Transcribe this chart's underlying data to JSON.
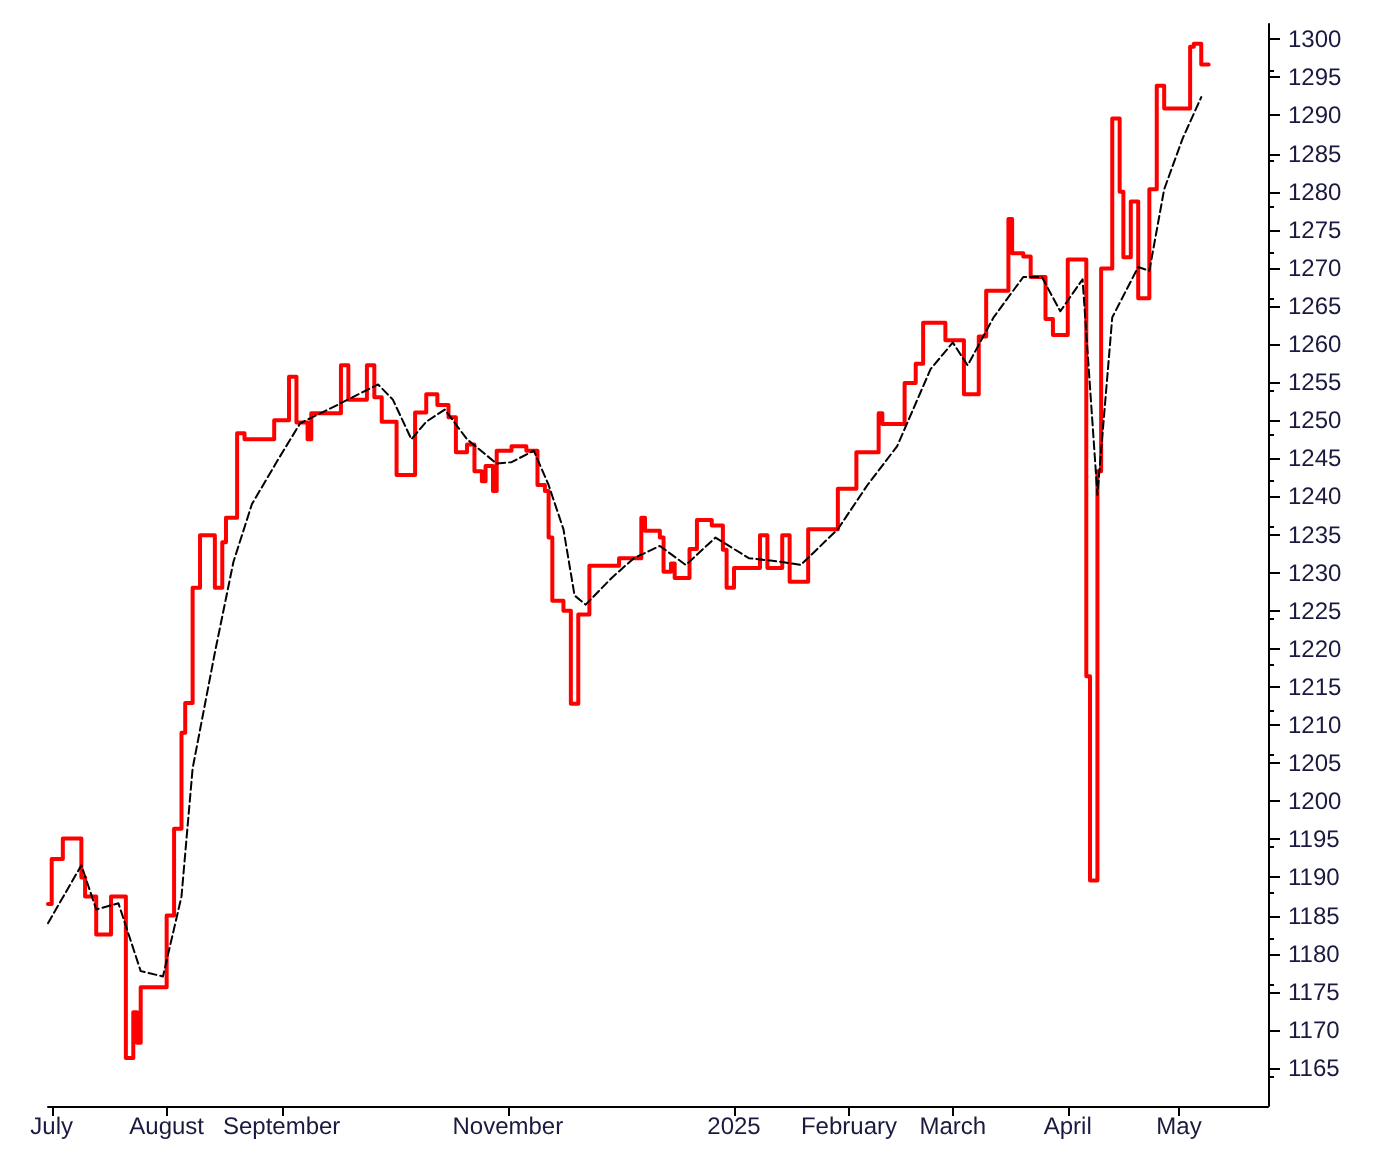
{
  "chart_data": {
    "type": "step",
    "x": [
      "2024-06-30",
      "2024-07-01",
      "2024-07-04",
      "2024-07-09",
      "2024-07-10",
      "2024-07-13",
      "2024-07-17",
      "2024-07-21",
      "2024-07-23",
      "2024-07-24",
      "2024-07-25",
      "2024-08-01",
      "2024-08-03",
      "2024-08-05",
      "2024-08-06",
      "2024-08-08",
      "2024-08-10",
      "2024-08-14",
      "2024-08-16",
      "2024-08-17",
      "2024-08-20",
      "2024-08-22",
      "2024-08-30",
      "2024-09-03",
      "2024-09-05",
      "2024-09-08",
      "2024-09-09",
      "2024-09-17",
      "2024-09-19",
      "2024-09-24",
      "2024-09-26",
      "2024-09-28",
      "2024-10-02",
      "2024-10-07",
      "2024-10-10",
      "2024-10-13",
      "2024-10-16",
      "2024-10-18",
      "2024-10-21",
      "2024-10-23",
      "2024-10-25",
      "2024-10-26",
      "2024-10-28",
      "2024-10-29",
      "2024-11-02",
      "2024-11-06",
      "2024-11-09",
      "2024-11-11",
      "2024-11-12",
      "2024-11-13",
      "2024-11-16",
      "2024-11-18",
      "2024-11-20",
      "2024-11-23",
      "2024-12-01",
      "2024-12-07",
      "2024-12-08",
      "2024-12-12",
      "2024-12-13",
      "2024-12-15",
      "2024-12-16",
      "2024-12-20",
      "2024-12-22",
      "2024-12-26",
      "2024-12-29",
      "2024-12-30",
      "2025-01-01",
      "2025-01-08",
      "2025-01-10",
      "2025-01-14",
      "2025-01-16",
      "2025-01-21",
      "2025-01-29",
      "2025-02-03",
      "2025-02-09",
      "2025-02-10",
      "2025-02-16",
      "2025-02-19",
      "2025-02-21",
      "2025-02-27",
      "2025-03-04",
      "2025-03-08",
      "2025-03-10",
      "2025-03-16",
      "2025-03-17",
      "2025-03-20",
      "2025-03-22",
      "2025-03-26",
      "2025-03-28",
      "2025-04-01",
      "2025-04-06",
      "2025-04-07",
      "2025-04-09",
      "2025-04-10",
      "2025-04-13",
      "2025-04-15",
      "2025-04-16",
      "2025-04-18",
      "2025-04-20",
      "2025-04-23",
      "2025-04-25",
      "2025-04-27",
      "2025-05-04",
      "2025-05-05",
      "2025-05-07",
      "2025-05-09"
    ],
    "series": [
      {
        "color": "#ff0000",
        "values": [
          1186.5,
          1192.4,
          1195.1,
          1190,
          1187.5,
          1182.5,
          1187.5,
          1166.3,
          1172.3,
          1168.3,
          1175.6,
          1185,
          1196.4,
          1209,
          1212.9,
          1228,
          1234.9,
          1228,
          1234,
          1237.2,
          1248.3,
          1247.5,
          1250,
          1255.7,
          1249.7,
          1247.5,
          1250.9,
          1257.2,
          1252.7,
          1257.2,
          1253,
          1249.8,
          1242.8,
          1251,
          1253.4,
          1252,
          1250.4,
          1245.8,
          1246.8,
          1243.3,
          1242,
          1244,
          1240.7,
          1246,
          1246.6,
          1246,
          1241.5,
          1240.7,
          1234.6,
          1226.3,
          1225,
          1212.8,
          1224.5,
          1230.9,
          1231.9,
          1237.2,
          1235.5,
          1234.6,
          1230.1,
          1231.2,
          1229.3,
          1233.1,
          1236.9,
          1236.2,
          1233,
          1228,
          1230.6,
          1234.9,
          1230.6,
          1234.9,
          1228.8,
          1235.7,
          1241,
          1245.8,
          1250.9,
          1249.5,
          1254.9,
          1257.4,
          1262.8,
          1260.5,
          1253.4,
          1261,
          1267,
          1276.4,
          1271.9,
          1271.5,
          1268.8,
          1263.3,
          1261.2,
          1271.1,
          1216.4,
          1189.6,
          1243.3,
          1269.9,
          1289.6,
          1280,
          1271.4,
          1278.7,
          1266,
          1280.3,
          1293.9,
          1290.9,
          1299,
          1299.4,
          1296.7,
          1296.7
        ]
      },
      {
        "type": "line",
        "color": "#000000",
        "line_style": "dashed",
        "x": [
          "2024-06-30",
          "2024-07-09",
          "2024-07-13",
          "2024-07-19",
          "2024-07-25",
          "2024-07-31",
          "2024-08-05",
          "2024-08-08",
          "2024-08-14",
          "2024-08-19",
          "2024-08-24",
          "2024-08-31",
          "2024-09-06",
          "2024-09-16",
          "2024-09-27",
          "2024-10-01",
          "2024-10-06",
          "2024-10-10",
          "2024-10-15",
          "2024-10-21",
          "2024-10-29",
          "2024-11-02",
          "2024-11-08",
          "2024-11-12",
          "2024-11-16",
          "2024-11-19",
          "2024-11-22",
          "2024-11-29",
          "2024-12-05",
          "2024-12-12",
          "2024-12-19",
          "2024-12-27",
          "2025-01-05",
          "2025-01-14",
          "2025-01-19",
          "2025-01-29",
          "2025-02-06",
          "2025-02-14",
          "2025-02-23",
          "2025-03-01",
          "2025-03-05",
          "2025-03-12",
          "2025-03-20",
          "2025-03-25",
          "2025-03-30",
          "2025-04-05",
          "2025-04-09",
          "2025-04-13",
          "2025-04-20",
          "2025-04-23",
          "2025-04-27",
          "2025-05-02",
          "2025-05-07"
        ],
        "values": [
          1184,
          1191.6,
          1185.8,
          1186.6,
          1177.7,
          1177,
          1187.5,
          1204.3,
          1219.5,
          1231.4,
          1239,
          1244.8,
          1249.6,
          1252,
          1254.7,
          1252.7,
          1247.5,
          1249.8,
          1251.4,
          1247.5,
          1244.3,
          1244.5,
          1246,
          1241.5,
          1235.7,
          1227,
          1225.8,
          1229.3,
          1231.9,
          1233.5,
          1231,
          1234.6,
          1231.9,
          1231.4,
          1231,
          1235.7,
          1241.5,
          1246.6,
          1256.7,
          1260.2,
          1257.2,
          1263.5,
          1268.8,
          1268.8,
          1264.3,
          1268.5,
          1240.2,
          1263.5,
          1270.1,
          1269.6,
          1280.3,
          1287,
          1292.4
        ]
      }
    ],
    "xlim": [
      "2024-06-30",
      "2025-05-25"
    ],
    "xticks": [
      {
        "value": "2024-07-01",
        "label": "July"
      },
      {
        "value": "2024-08-01",
        "label": "August"
      },
      {
        "value": "2024-09-01",
        "label": "September"
      },
      {
        "value": "2024-11-01",
        "label": "November"
      },
      {
        "value": "2025-01-01",
        "label": "2025"
      },
      {
        "value": "2025-02-01",
        "label": "February"
      },
      {
        "value": "2025-03-01",
        "label": "March"
      },
      {
        "value": "2025-04-01",
        "label": "April"
      },
      {
        "value": "2025-05-01",
        "label": "May"
      }
    ],
    "ylim": [
      1160,
      1302
    ],
    "yticks": [
      1165,
      1170,
      1175,
      1180,
      1185,
      1190,
      1195,
      1200,
      1205,
      1210,
      1215,
      1220,
      1225,
      1230,
      1235,
      1240,
      1245,
      1250,
      1255,
      1260,
      1265,
      1270,
      1275,
      1280,
      1285,
      1290,
      1295,
      1300
    ],
    "grid": false,
    "marker": "none"
  }
}
